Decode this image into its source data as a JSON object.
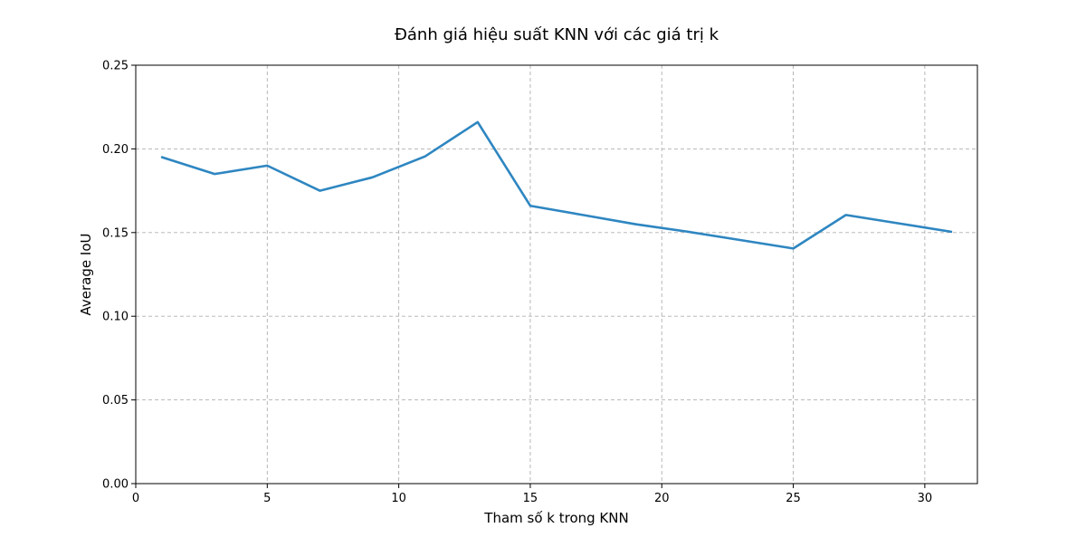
{
  "chart_data": {
    "type": "line",
    "title": "Đánh giá hiệu suất KNN với các giá trị k",
    "xlabel": "Tham số k trong KNN",
    "ylabel": "Average IoU",
    "xlim": [
      0,
      32
    ],
    "ylim": [
      0,
      0.25
    ],
    "xticks": [
      0,
      5,
      10,
      15,
      20,
      25,
      30
    ],
    "xtick_labels": [
      "0",
      "5",
      "10",
      "15",
      "20",
      "25",
      "30"
    ],
    "yticks": [
      0,
      0.05,
      0.1,
      0.15,
      0.2,
      0.25
    ],
    "ytick_labels": [
      "0.00",
      "0.05",
      "0.10",
      "0.15",
      "0.20",
      "0.25"
    ],
    "grid": true,
    "series": [
      {
        "color": "#2e86c1",
        "x": [
          1,
          3,
          5,
          7,
          9,
          11,
          13,
          15,
          17,
          19,
          21,
          23,
          25,
          27,
          29,
          31
        ],
        "y": [
          0.195,
          0.185,
          0.19,
          0.175,
          0.183,
          0.1955,
          0.216,
          0.166,
          0.1605,
          0.155,
          0.1505,
          0.1455,
          0.1405,
          0.1605,
          0.1555,
          0.1505
        ]
      }
    ]
  }
}
